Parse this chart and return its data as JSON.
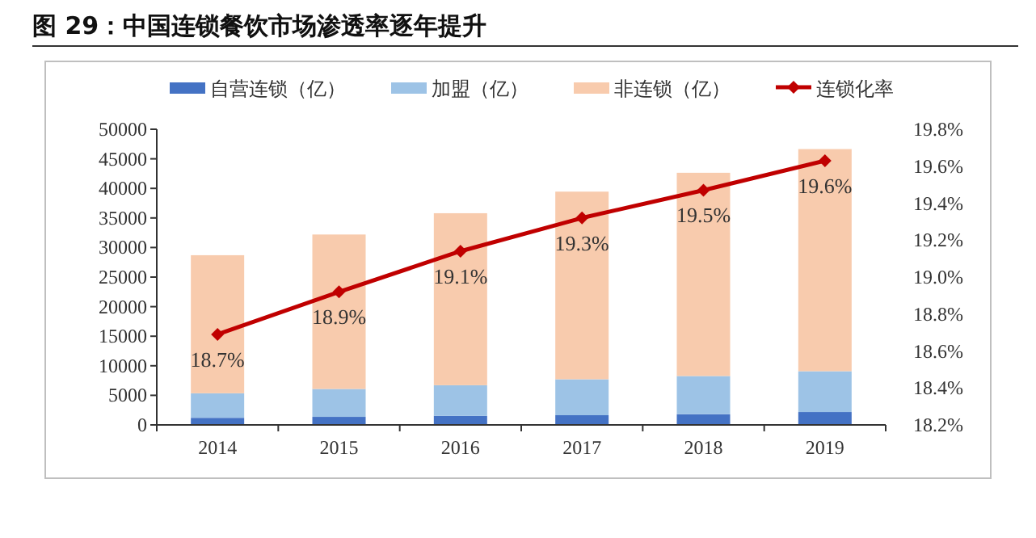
{
  "chart_data": {
    "type": "bar",
    "title": "图 29：中国连锁餐饮市场渗透率逐年提升",
    "categories": [
      "2014",
      "2015",
      "2016",
      "2017",
      "2018",
      "2019"
    ],
    "stacked": true,
    "legend": "top",
    "marker": "diamond",
    "ylim": [
      0,
      50000
    ],
    "yticks": [
      0,
      5000,
      10000,
      15000,
      20000,
      25000,
      30000,
      35000,
      40000,
      45000,
      50000
    ],
    "y2lim": [
      18.2,
      19.8
    ],
    "y2ticks": [
      {
        "value": 18.2,
        "label": "18.2%"
      },
      {
        "value": 18.4,
        "label": "18.4%"
      },
      {
        "value": 18.6,
        "label": "18.6%"
      },
      {
        "value": 18.8,
        "label": "18.8%"
      },
      {
        "value": 19.0,
        "label": "19.0%"
      },
      {
        "value": 19.2,
        "label": "19.2%"
      },
      {
        "value": 19.4,
        "label": "19.4%"
      },
      {
        "value": 19.6,
        "label": "19.6%"
      },
      {
        "value": 19.8,
        "label": "19.8%"
      }
    ],
    "series": [
      {
        "name": "自营连锁（亿）",
        "color": "#4472c4",
        "values": [
          1200,
          1360,
          1530,
          1640,
          1800,
          2180
        ]
      },
      {
        "name": "加盟（亿）",
        "color": "#9dc3e6",
        "values": [
          4150,
          4720,
          5180,
          6080,
          6470,
          6900
        ]
      },
      {
        "name": "非连锁（亿）",
        "color": "#f8cbad",
        "values": [
          23350,
          26120,
          29090,
          31730,
          34370,
          37570
        ]
      },
      {
        "name": "连锁化率",
        "type": "line",
        "axis": "y2",
        "color": "#c00000",
        "values": [
          18.69,
          18.92,
          19.14,
          19.32,
          19.47,
          19.63
        ],
        "value_labels": [
          "18.7%",
          "18.9%",
          "19.1%",
          "19.3%",
          "19.5%",
          "19.6%"
        ]
      }
    ]
  }
}
